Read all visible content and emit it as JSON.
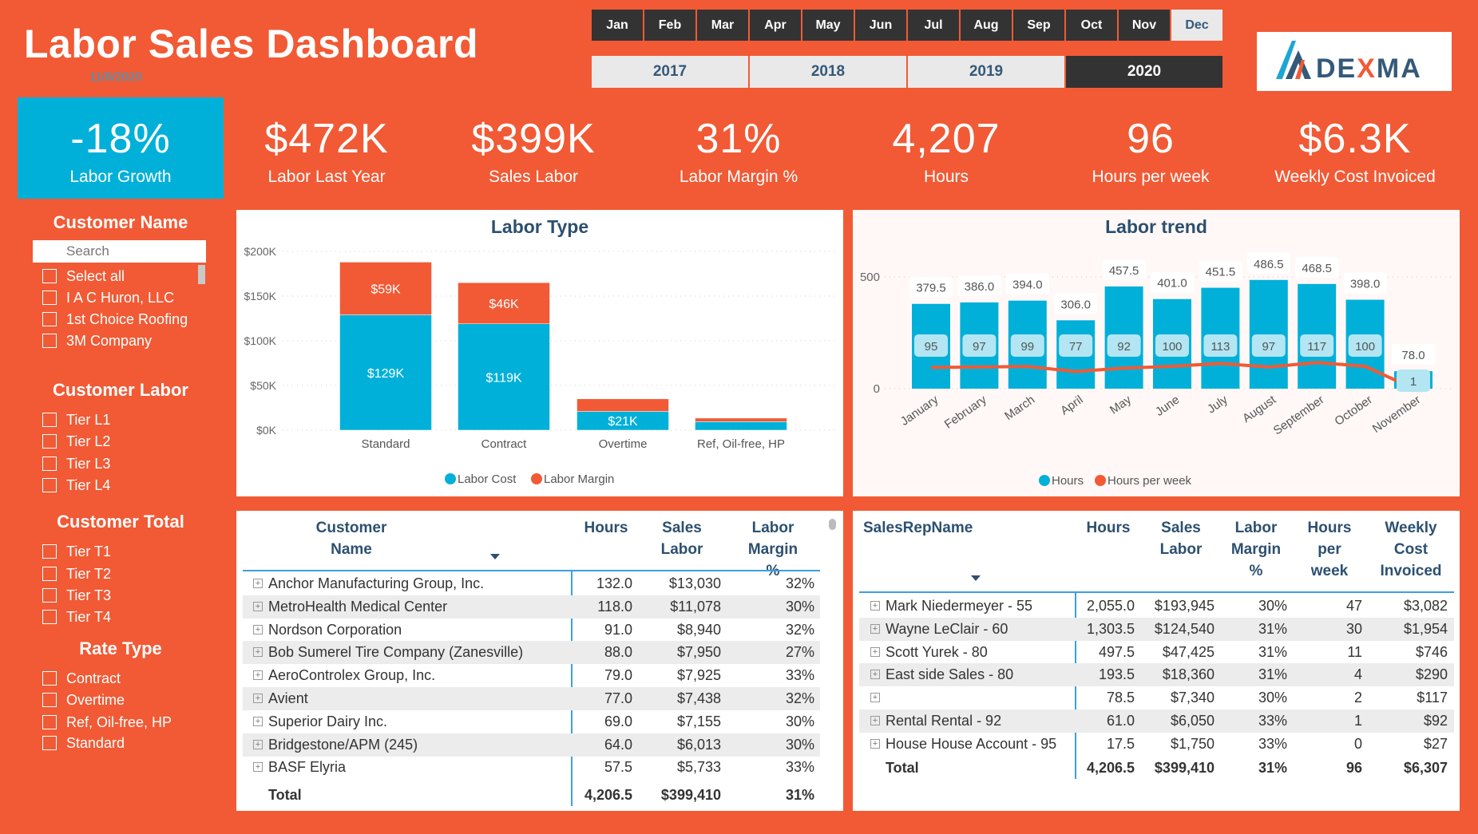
{
  "header": {
    "title": "Labor Sales Dashboard",
    "date": "11/6/2020",
    "logo_text": "DEXMA",
    "logo_letter": "A"
  },
  "months": {
    "items": [
      "Jan",
      "Feb",
      "Mar",
      "Apr",
      "May",
      "Jun",
      "Jul",
      "Aug",
      "Sep",
      "Oct",
      "Nov",
      "Dec"
    ],
    "selected": "Dec"
  },
  "years": {
    "items": [
      "2017",
      "2018",
      "2019",
      "2020"
    ],
    "selected": "2020"
  },
  "kpis": [
    {
      "value": "-18%",
      "label": "Labor Growth"
    },
    {
      "value": "$472K",
      "label": "Labor Last Year"
    },
    {
      "value": "$399K",
      "label": "Sales Labor"
    },
    {
      "value": "31%",
      "label": "Labor Margin %"
    },
    {
      "value": "4,207",
      "label": "Hours"
    },
    {
      "value": "96",
      "label": "Hours per week"
    },
    {
      "value": "$6.3K",
      "label": "Weekly Cost Invoiced"
    }
  ],
  "slicers": {
    "customer_name": {
      "title": "Customer Name",
      "search_placeholder": "Search",
      "items": [
        "Select all",
        "I A C Huron, LLC",
        "1st Choice Roofing",
        "3M Company"
      ]
    },
    "customer_labor": {
      "title": "Customer Labor",
      "items": [
        "Tier L1",
        "Tier L2",
        "Tier L3",
        "Tier L4"
      ]
    },
    "customer_total": {
      "title": "Customer Total",
      "items": [
        "Tier T1",
        "Tier T2",
        "Tier T3",
        "Tier T4"
      ]
    },
    "rate_type": {
      "title": "Rate Type",
      "items": [
        "Contract",
        "Overtime",
        "Ref, Oil-free, HP",
        "Standard"
      ]
    }
  },
  "colors": {
    "background": "#f15a35",
    "blue": "#01b0d9",
    "dark": "#333333",
    "heading": "#2c5070"
  },
  "chart_data": [
    {
      "type": "bar",
      "stacked": true,
      "title": "Labor Type",
      "categories": [
        "Standard",
        "Contract",
        "Overtime",
        "Ref, Oil-free, HP"
      ],
      "series": [
        {
          "name": "Labor Cost",
          "color": "#01b0d9",
          "values": [
            129,
            119,
            21,
            9.5
          ],
          "labels": [
            "$129K",
            "$119K",
            "$21K",
            ""
          ]
        },
        {
          "name": "Labor Margin",
          "color": "#f15a35",
          "values": [
            59,
            46,
            14,
            4
          ],
          "labels": [
            "$59K",
            "$46K",
            "",
            ""
          ]
        }
      ],
      "unit": "$K",
      "ylim": [
        0,
        200
      ],
      "yticks": [
        "$0K",
        "$50K",
        "$100K",
        "$150K",
        "$200K"
      ],
      "grid": true,
      "legend": "bottom"
    },
    {
      "type": "bar+line",
      "title": "Labor trend",
      "categories": [
        "January",
        "February",
        "March",
        "April",
        "May",
        "June",
        "July",
        "August",
        "September",
        "October",
        "November"
      ],
      "series": [
        {
          "name": "Hours",
          "color": "#01b0d9",
          "values": [
            379.5,
            386.0,
            394.0,
            306.0,
            457.5,
            401.0,
            451.5,
            486.5,
            468.5,
            398.0,
            78.0
          ],
          "labels": [
            "379.5",
            "386.0",
            "394.0",
            "306.0",
            "457.5",
            "401.0",
            "451.5",
            "486.5",
            "468.5",
            "398.0",
            "78.0"
          ]
        },
        {
          "name": "Hours per week",
          "color": "#f15a35",
          "values": [
            95,
            97,
            99,
            77,
            92,
            100,
            113,
            97,
            117,
            100,
            1
          ],
          "labels": [
            "95",
            "97",
            "99",
            "77",
            "92",
            "100",
            "113",
            "97",
            "117",
            "100",
            "1"
          ]
        }
      ],
      "ylim": [
        0,
        500
      ],
      "yticks": [
        "0",
        "500"
      ],
      "grid": true,
      "legend": "bottom"
    }
  ],
  "customer_table": {
    "headers": [
      "Customer Name",
      "Hours",
      "Sales Labor",
      "Labor Margin %"
    ],
    "rows": [
      [
        "Anchor Manufacturing Group, Inc.",
        "132.0",
        "$13,030",
        "32%"
      ],
      [
        "MetroHealth Medical Center",
        "118.0",
        "$11,078",
        "30%"
      ],
      [
        "Nordson Corporation",
        "91.0",
        "$8,940",
        "32%"
      ],
      [
        "Bob Sumerel Tire Company (Zanesville)",
        "88.0",
        "$7,950",
        "27%"
      ],
      [
        "AeroControlex Group, Inc.",
        "79.0",
        "$7,925",
        "33%"
      ],
      [
        "Avient",
        "77.0",
        "$7,438",
        "32%"
      ],
      [
        "Superior Dairy Inc.",
        "69.0",
        "$7,155",
        "30%"
      ],
      [
        "Bridgestone/APM (245)",
        "64.0",
        "$6,013",
        "30%"
      ],
      [
        "BASF Elyria",
        "57.5",
        "$5,733",
        "33%"
      ]
    ],
    "total": [
      "Total",
      "4,206.5",
      "$399,410",
      "31%"
    ]
  },
  "salesrep_table": {
    "headers": [
      "SalesRepName",
      "Hours",
      "Sales Labor",
      "Labor Margin %",
      "Hours per week",
      "Weekly Cost Invoiced"
    ],
    "rows": [
      [
        "Mark Niedermeyer - 55",
        "2,055.0",
        "$193,945",
        "30%",
        "47",
        "$3,082"
      ],
      [
        "Wayne LeClair - 60",
        "1,303.5",
        "$124,540",
        "31%",
        "30",
        "$1,954"
      ],
      [
        "Scott Yurek - 80",
        "497.5",
        "$47,425",
        "31%",
        "11",
        "$746"
      ],
      [
        "East side Sales - 80",
        "193.5",
        "$18,360",
        "31%",
        "4",
        "$290"
      ],
      [
        "",
        "78.5",
        "$7,340",
        "30%",
        "2",
        "$117"
      ],
      [
        "Rental Rental - 92",
        "61.0",
        "$6,050",
        "33%",
        "1",
        "$92"
      ],
      [
        "House House Account - 95",
        "17.5",
        "$1,750",
        "33%",
        "0",
        "$27"
      ]
    ],
    "total": [
      "Total",
      "4,206.5",
      "$399,410",
      "31%",
      "96",
      "$6,307"
    ]
  }
}
